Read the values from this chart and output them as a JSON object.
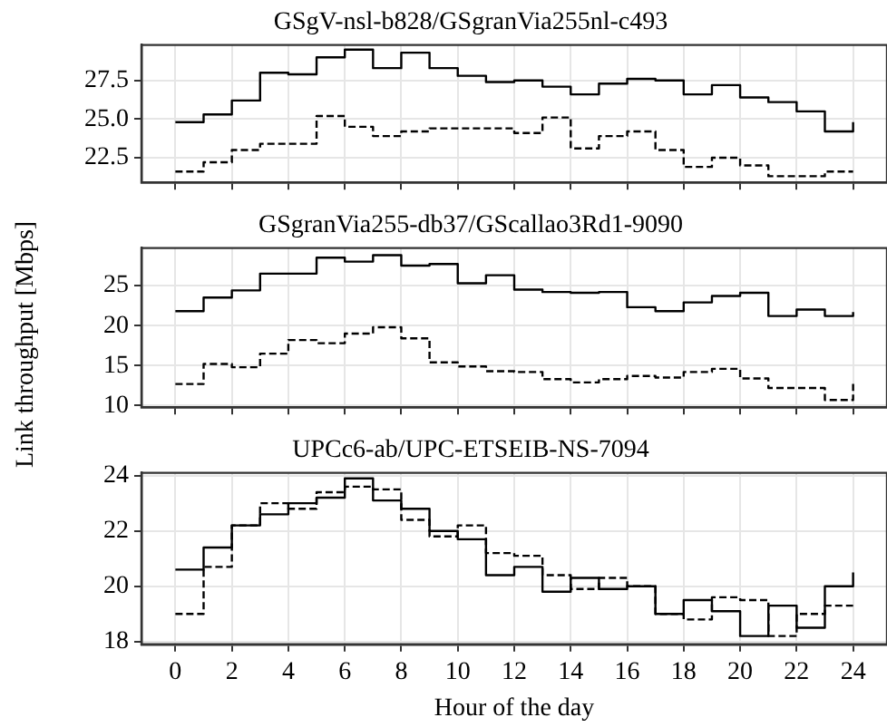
{
  "chart_data": [
    {
      "type": "step",
      "title": "GSgV-nsl-b828/GSgranVia255nl-c493",
      "ylabel": "Link throughput [Mbps]",
      "x": [
        0,
        1,
        2,
        3,
        4,
        5,
        6,
        7,
        8,
        9,
        10,
        11,
        12,
        13,
        14,
        15,
        16,
        17,
        18,
        19,
        20,
        21,
        22,
        23,
        24
      ],
      "xlim": [
        -1.2,
        25.2
      ],
      "xticks": [
        0,
        2,
        4,
        6,
        8,
        10,
        12,
        14,
        16,
        18,
        20,
        22,
        24
      ],
      "ylim": [
        20.9,
        29.8
      ],
      "yticks": [
        {
          "value": 22.5,
          "label": "22.5"
        },
        {
          "value": 25,
          "label": "25.0"
        },
        {
          "value": 27.5,
          "label": "27.5"
        }
      ],
      "grid": true,
      "tick_labels": "y",
      "series": [
        {
          "color": "#000000",
          "line_style": "solid",
          "values": [
            24.8,
            25.3,
            26.2,
            28.0,
            27.9,
            29.0,
            29.5,
            28.3,
            29.3,
            28.3,
            27.8,
            27.4,
            27.5,
            27.1,
            26.6,
            27.3,
            27.6,
            27.5,
            26.6,
            27.2,
            26.4,
            26.1,
            25.5,
            24.2,
            24.8
          ]
        },
        {
          "color": "#000000",
          "line_style": "dashed",
          "values": [
            21.6,
            22.2,
            23.0,
            23.4,
            23.4,
            25.2,
            24.5,
            23.9,
            24.2,
            24.4,
            24.4,
            24.4,
            24.1,
            25.1,
            23.1,
            23.9,
            24.2,
            23.0,
            21.9,
            22.5,
            22.0,
            21.3,
            21.3,
            21.6,
            21.6
          ]
        }
      ]
    },
    {
      "type": "step",
      "title": "GSgranVia255-db37/GScallao3Rd1-9090",
      "x": [
        0,
        1,
        2,
        3,
        4,
        5,
        6,
        7,
        8,
        9,
        10,
        11,
        12,
        13,
        14,
        15,
        16,
        17,
        18,
        19,
        20,
        21,
        22,
        23,
        24
      ],
      "xlim": [
        -1.2,
        25.2
      ],
      "xticks": [
        0,
        2,
        4,
        6,
        8,
        10,
        12,
        14,
        16,
        18,
        20,
        22,
        24
      ],
      "ylim": [
        9.8,
        29.7
      ],
      "yticks": [
        10,
        15,
        20,
        25
      ],
      "grid": true,
      "tick_labels": "y",
      "series": [
        {
          "color": "#000000",
          "line_style": "solid",
          "values": [
            21.8,
            23.5,
            24.4,
            26.5,
            26.5,
            28.5,
            28.0,
            28.8,
            27.5,
            27.7,
            25.3,
            26.3,
            24.5,
            24.2,
            24.1,
            24.2,
            22.3,
            21.8,
            22.9,
            23.7,
            24.1,
            21.2,
            22.0,
            21.2,
            21.7
          ]
        },
        {
          "color": "#000000",
          "line_style": "dashed",
          "values": [
            12.7,
            15.2,
            14.8,
            16.5,
            18.2,
            17.8,
            19.0,
            19.8,
            18.4,
            15.4,
            14.9,
            14.3,
            14.2,
            13.3,
            12.9,
            13.3,
            13.7,
            13.5,
            14.2,
            14.6,
            13.4,
            12.2,
            12.2,
            10.7,
            12.7
          ]
        }
      ]
    },
    {
      "type": "step",
      "title": "UPCc6-ab/UPC-ETSEIB-NS-7094",
      "xlabel": "Hour of the day",
      "x": [
        0,
        1,
        2,
        3,
        4,
        5,
        6,
        7,
        8,
        9,
        10,
        11,
        12,
        13,
        14,
        15,
        16,
        17,
        18,
        19,
        20,
        21,
        22,
        23,
        24
      ],
      "xlim": [
        -1.2,
        25.2
      ],
      "xticks": [
        0,
        2,
        4,
        6,
        8,
        10,
        12,
        14,
        16,
        18,
        20,
        22,
        24
      ],
      "ylim": [
        17.9,
        24.1
      ],
      "yticks": [
        18,
        20,
        22,
        24
      ],
      "grid": true,
      "series": [
        {
          "color": "#000000",
          "line_style": "solid",
          "values": [
            20.6,
            21.4,
            22.2,
            22.6,
            23.0,
            23.2,
            23.9,
            23.1,
            22.8,
            22.0,
            21.7,
            20.4,
            20.7,
            19.8,
            20.3,
            19.9,
            20.0,
            19.0,
            19.5,
            19.1,
            18.2,
            19.3,
            18.5,
            20.0,
            20.5
          ]
        },
        {
          "color": "#000000",
          "line_style": "dashed",
          "values": [
            19.0,
            20.7,
            22.2,
            23.0,
            22.8,
            23.4,
            23.6,
            23.5,
            22.4,
            21.8,
            22.2,
            21.2,
            21.1,
            20.4,
            19.9,
            20.3,
            20.0,
            19.0,
            18.8,
            19.6,
            19.5,
            18.2,
            19.0,
            19.3,
            19.3
          ]
        }
      ]
    }
  ]
}
